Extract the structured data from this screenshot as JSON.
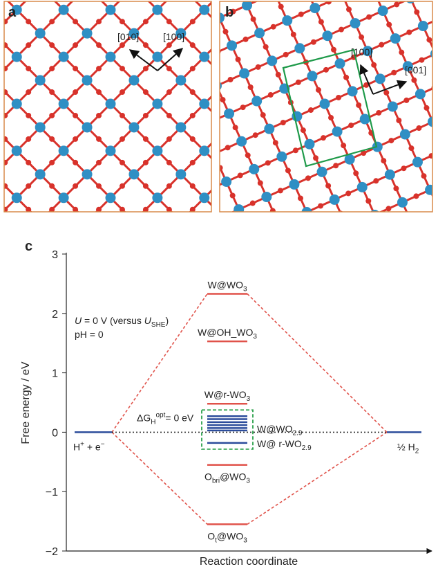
{
  "panels": [
    {
      "label": "a",
      "annotations": [
        "[010]",
        "[100]"
      ]
    },
    {
      "label": "b",
      "annotations": [
        "[100]",
        "[001]"
      ]
    }
  ],
  "chart_data": {
    "type": "energy_levels",
    "panel_label": "c",
    "ylabel": "Free energy / eV",
    "xlabel": "Reaction coordinate",
    "ylim": [
      -2,
      3
    ],
    "yticks": [
      {
        "value": -2,
        "label": "−2"
      },
      {
        "value": -1,
        "label": "−1"
      },
      0,
      1,
      2,
      3
    ],
    "conditions": [
      [
        {
          "i": "U"
        },
        {
          "t": " = 0 V (versus "
        },
        {
          "i": "U"
        },
        {
          "sub": "SHE"
        },
        {
          "t": ")"
        }
      ],
      [
        {
          "t": "pH = 0"
        }
      ]
    ],
    "optimum_label": [
      {
        "t": "ΔG"
      },
      {
        "sub": "H"
      },
      {
        "sup": "opt"
      },
      {
        "t": "= 0 eV"
      }
    ],
    "initial": {
      "label": [
        {
          "t": "H"
        },
        {
          "sup": "+"
        },
        {
          "t": " + e"
        },
        {
          "sup": "−"
        }
      ],
      "value": 0,
      "color": "#2b4c9b"
    },
    "final": {
      "label": [
        {
          "t": "½ H"
        },
        {
          "sub": "2"
        }
      ],
      "value": 0,
      "color": "#2b4c9b"
    },
    "intermediates": [
      {
        "label": [
          {
            "t": "W@WO"
          },
          {
            "sub": "3"
          }
        ],
        "value": 2.33,
        "color": "#e0524a"
      },
      {
        "label": [
          {
            "t": "W@OH_WO"
          },
          {
            "sub": "3"
          }
        ],
        "value": 1.53,
        "color": "#e0524a"
      },
      {
        "label": [
          {
            "t": "W@r-WO"
          },
          {
            "sub": "3"
          }
        ],
        "value": 0.48,
        "color": "#e0524a"
      },
      {
        "label": null,
        "value": 0.27,
        "color": "#2b4c9b"
      },
      {
        "label": null,
        "value": 0.22,
        "color": "#2b4c9b"
      },
      {
        "label": null,
        "value": 0.17,
        "color": "#2b4c9b"
      },
      {
        "label": null,
        "value": 0.12,
        "color": "#2b4c9b"
      },
      {
        "label": [
          {
            "t": "W@WO"
          },
          {
            "sub": "2.9"
          }
        ],
        "value": 0.07,
        "color": "#2b4c9b"
      },
      {
        "label": null,
        "value": 0.03,
        "color": "#2b4c9b"
      },
      {
        "label": [
          {
            "t": "W@ r-WO"
          },
          {
            "sub": "2.9"
          }
        ],
        "value": -0.18,
        "color": "#2b4c9b"
      },
      {
        "label": [
          {
            "t": "O"
          },
          {
            "sub": "bri"
          },
          {
            "t": "@WO"
          },
          {
            "sub": "3"
          }
        ],
        "value": -0.55,
        "color": "#e0524a"
      },
      {
        "label": [
          {
            "t": "O"
          },
          {
            "sub": "t"
          },
          {
            "t": "@WO"
          },
          {
            "sub": "3"
          }
        ],
        "value": -1.55,
        "color": "#e0524a"
      }
    ]
  }
}
